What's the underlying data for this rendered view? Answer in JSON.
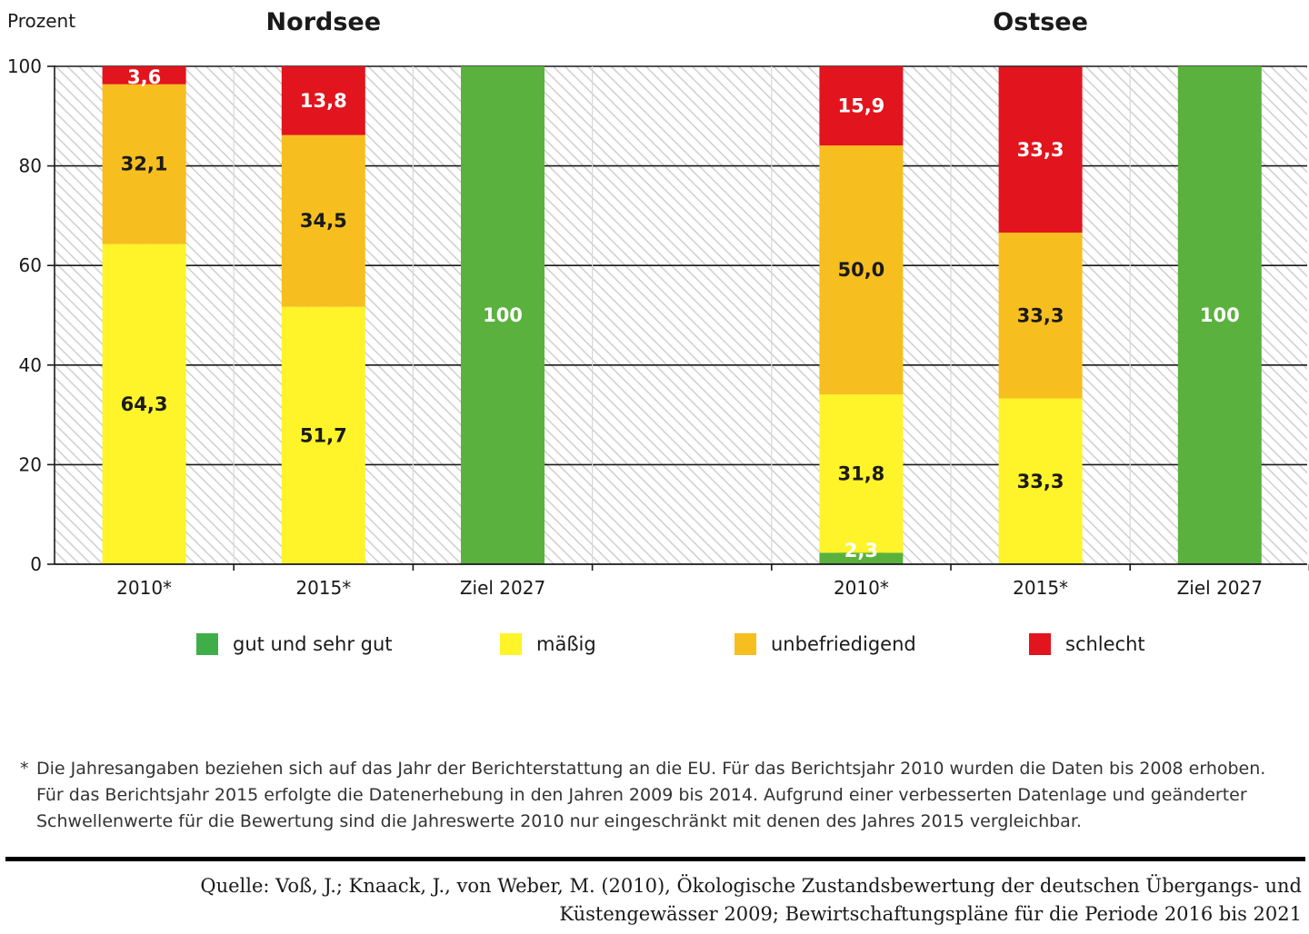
{
  "chart_data": {
    "type": "bar",
    "stacked": true,
    "ylabel": "Prozent",
    "ylim": [
      0,
      100
    ],
    "yticks": [
      0,
      20,
      40,
      60,
      80,
      100
    ],
    "grid": true,
    "groups": [
      {
        "title": "Nordsee",
        "categories": [
          "2010*",
          "2015*",
          "Ziel 2027"
        ],
        "series": [
          {
            "name": "gut und sehr gut",
            "values": [
              0,
              0,
              100
            ],
            "labels": [
              "",
              "",
              "100"
            ]
          },
          {
            "name": "mäßig",
            "values": [
              64.3,
              51.7,
              0
            ],
            "labels": [
              "64,3",
              "51,7",
              ""
            ]
          },
          {
            "name": "unbefriedigend",
            "values": [
              32.1,
              34.5,
              0
            ],
            "labels": [
              "32,1",
              "34,5",
              ""
            ]
          },
          {
            "name": "schlecht",
            "values": [
              3.6,
              13.8,
              0
            ],
            "labels": [
              "3,6",
              "13,8",
              ""
            ]
          }
        ]
      },
      {
        "title": "Ostsee",
        "categories": [
          "2010*",
          "2015*",
          "Ziel 2027"
        ],
        "series": [
          {
            "name": "gut und sehr gut",
            "values": [
              2.3,
              0,
              100
            ],
            "labels": [
              "2,3",
              "",
              "100"
            ]
          },
          {
            "name": "mäßig",
            "values": [
              31.8,
              33.3,
              0
            ],
            "labels": [
              "31,8",
              "33,3",
              ""
            ]
          },
          {
            "name": "unbefriedigend",
            "values": [
              50.0,
              33.3,
              0
            ],
            "labels": [
              "50,0",
              "33,3",
              ""
            ]
          },
          {
            "name": "schlecht",
            "values": [
              15.9,
              33.3,
              0
            ],
            "labels": [
              "15,9",
              "33,3",
              ""
            ]
          }
        ]
      }
    ],
    "legend": [
      {
        "name": "gut und sehr gut",
        "color": "#3fae49"
      },
      {
        "name": "mäßig",
        "color": "#fff32a"
      },
      {
        "name": "unbefriedigend",
        "color": "#f7be1f"
      },
      {
        "name": "schlecht",
        "color": "#e2141d"
      }
    ],
    "label_colors": {
      "gut und sehr gut": "#ffffff",
      "mäßig": "#1a1a1a",
      "unbefriedigend": "#1a1a1a",
      "schlecht": "#ffffff"
    },
    "bar_green": "#5ab13d"
  },
  "footnote": {
    "star": "*",
    "lines": [
      "Die Jahresangaben beziehen sich auf das Jahr der Berichterstattung an die EU. Für das Berichtsjahr 2010 wurden die Daten bis 2008 erhoben.",
      "Für das Berichtsjahr 2015 erfolgte die Datenerhebung in den Jahren 2009 bis 2014. Aufgrund einer verbesserten Datenlage und geänderter",
      "Schwellenwerte für die Bewertung sind die Jahreswerte 2010 nur eingeschränkt mit denen des Jahres 2015 vergleichbar."
    ]
  },
  "source": {
    "lines": [
      "Quelle: Voß, J.; Knaack, J., von Weber, M. (2010), Ökologische Zustandsbewertung der deutschen Übergangs- und",
      "Küstengewässer 2009; Bewirtschaftungspläne für die Periode 2016 bis 2021"
    ]
  }
}
